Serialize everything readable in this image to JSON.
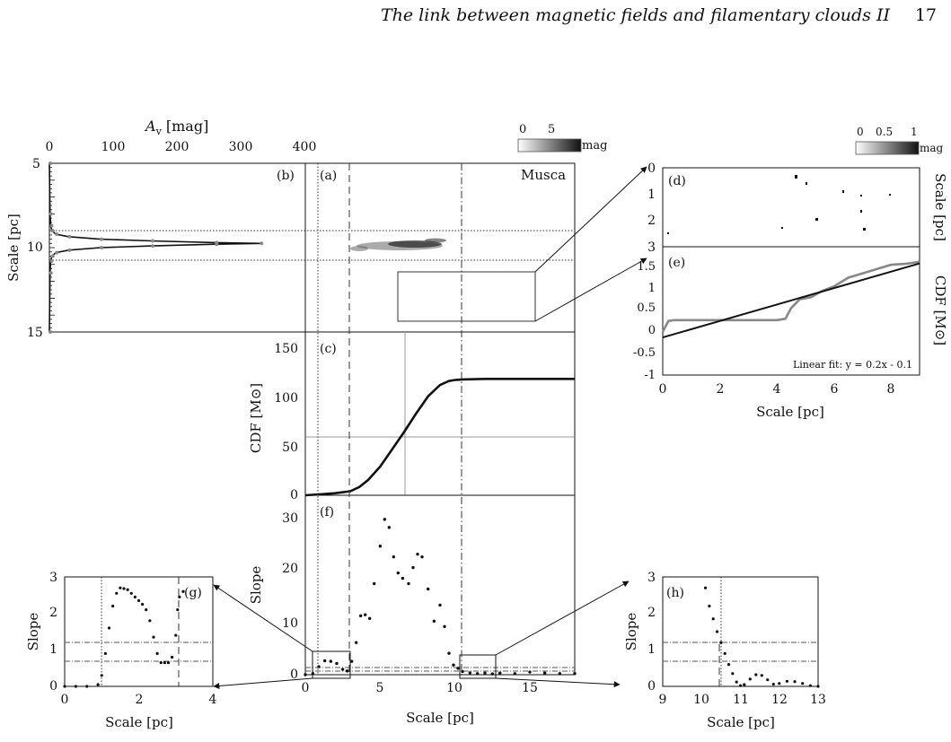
{
  "header": {
    "title": "The link between magnetic fields and filamentary clouds II",
    "page_number": "17"
  },
  "figure": {
    "colorbar_a": {
      "ticks": [
        "0",
        "5"
      ],
      "unit": "mag"
    },
    "colorbar_d": {
      "ticks": [
        "0",
        "0.5",
        "1"
      ],
      "unit": "mag"
    },
    "top_axis": {
      "label": "A_v [mag]",
      "ticks": [
        "0",
        "100",
        "200",
        "300",
        "400"
      ]
    },
    "panel_a": {
      "tag": "(a)",
      "name": "Musca"
    },
    "panel_b": {
      "tag": "(b)",
      "ylabel": "Scale [pc]",
      "yticks": [
        "5",
        "10",
        "15"
      ]
    },
    "panel_c": {
      "tag": "(c)",
      "ylabel": "CDF [M⊙]",
      "yticks": [
        "0",
        "50",
        "100",
        "150"
      ]
    },
    "panel_f": {
      "tag": "(f)",
      "ylabel": "Slope",
      "yticks": [
        "0",
        "10",
        "20",
        "30"
      ],
      "xlabel": "Scale [pc]",
      "xticks": [
        "0",
        "5",
        "10",
        "15"
      ]
    },
    "panel_d": {
      "tag": "(d)",
      "ylabel": "Scale [pc]",
      "yticks": [
        "0",
        "1",
        "2",
        "3"
      ]
    },
    "panel_e": {
      "tag": "(e)",
      "ylabel": "CDF [M⊙]",
      "yticks": [
        "-1",
        "-0.5",
        "0",
        "0.5",
        "1",
        "1.5"
      ],
      "xticks": [
        "0",
        "2",
        "4",
        "6",
        "8"
      ],
      "xlabel": "Scale [pc]",
      "fit_text": "Linear fit: y = 0.2x - 0.1"
    },
    "panel_g": {
      "tag": "(g)",
      "ylabel": "Slope",
      "yticks": [
        "0",
        "1",
        "2",
        "3"
      ],
      "xticks": [
        "0",
        "2",
        "4"
      ],
      "xlabel": "Scale [pc]"
    },
    "panel_h": {
      "tag": "(h)",
      "ylabel": "Slope",
      "yticks": [
        "0",
        "1",
        "2",
        "3"
      ],
      "xticks": [
        "9",
        "10",
        "11",
        "12",
        "13"
      ],
      "xlabel": "Scale [pc]"
    }
  },
  "chart_data": [
    {
      "type": "line",
      "panel": "b",
      "xlabel": "A_v [mag]",
      "ylabel": "Scale [pc]",
      "xlim": [
        0,
        400
      ],
      "ylim": [
        15,
        5
      ],
      "series": [
        {
          "x": [
            0,
            1,
            2,
            4,
            10,
            30,
            80,
            160,
            260,
            330,
            260,
            160,
            80,
            30,
            10,
            4,
            2,
            1,
            0
          ],
          "y": [
            5,
            8,
            8.7,
            9.0,
            9.2,
            9.35,
            9.5,
            9.6,
            9.7,
            9.75,
            9.8,
            9.9,
            10.0,
            10.15,
            10.3,
            10.5,
            10.8,
            11.5,
            15
          ]
        }
      ]
    },
    {
      "type": "line",
      "panel": "c",
      "xlabel": "Scale [pc]",
      "ylabel": "CDF [M⊙]",
      "xlim": [
        0,
        18
      ],
      "ylim": [
        0,
        160
      ],
      "series": [
        {
          "x": [
            0,
            1,
            2,
            3,
            3.6,
            4.2,
            5,
            5.8,
            6.6,
            7.4,
            8.2,
            9,
            9.6,
            10,
            10.5,
            12,
            14,
            16,
            18
          ],
          "y": [
            0,
            1,
            2,
            4,
            8,
            15,
            28,
            45,
            62,
            80,
            97,
            108,
            112,
            113,
            113.5,
            114,
            114,
            114,
            114
          ]
        }
      ]
    },
    {
      "type": "scatter",
      "panel": "f",
      "xlabel": "Scale [pc]",
      "ylabel": "Slope",
      "xlim": [
        0,
        18
      ],
      "ylim": [
        0,
        33
      ],
      "series": [
        {
          "x": [
            0,
            0.5,
            0.9,
            1.3,
            1.7,
            2.1,
            2.5,
            2.8,
            3.1,
            3.4,
            3.7,
            4.0,
            4.3,
            4.6,
            5.0,
            5.3,
            5.6,
            5.9,
            6.2,
            6.5,
            6.9,
            7.2,
            7.5,
            7.8,
            8.2,
            8.6,
            9.0,
            9.3,
            9.6,
            9.9,
            10.2,
            10.5,
            11,
            11.5,
            12,
            12.5,
            13,
            14,
            15,
            16,
            17,
            18
          ],
          "y": [
            0,
            0.2,
            1.5,
            2.6,
            2.5,
            2.1,
            1.0,
            0.7,
            2.5,
            6,
            11,
            11.2,
            10.5,
            17,
            24,
            29,
            27.5,
            22,
            19,
            18,
            17,
            20,
            22.5,
            22,
            16,
            10,
            13,
            9,
            4,
            1.8,
            1.2,
            0.6,
            0.35,
            0.2,
            0.3,
            0.15,
            0.3,
            0.2,
            0.5,
            0.3,
            0.2,
            0.2
          ]
        }
      ]
    },
    {
      "type": "line",
      "panel": "e",
      "title": "Linear fit: y = 0.2x - 0.1",
      "xlabel": "Scale [pc]",
      "ylabel": "CDF [M⊙]",
      "xlim": [
        0,
        9
      ],
      "ylim": [
        -1,
        1.8
      ],
      "series": [
        {
          "x": [
            0,
            0.2,
            0.4,
            1,
            2,
            3,
            4,
            4.3,
            4.5,
            4.8,
            5.2,
            5.6,
            6,
            6.5,
            7,
            7.5,
            8,
            8.5,
            9
          ],
          "y": [
            0,
            0.25,
            0.27,
            0.27,
            0.27,
            0.27,
            0.27,
            0.3,
            0.55,
            0.75,
            0.8,
            0.95,
            1.05,
            1.25,
            1.35,
            1.45,
            1.55,
            1.57,
            1.62
          ]
        },
        {
          "x": [
            0,
            9
          ],
          "y": [
            -0.13,
            1.58
          ]
        }
      ]
    },
    {
      "type": "scatter",
      "panel": "g",
      "xlabel": "Scale [pc]",
      "ylabel": "Slope",
      "xlim": [
        0,
        4
      ],
      "ylim": [
        0,
        3
      ],
      "series": [
        {
          "x": [
            0,
            0.3,
            0.6,
            0.9,
            1.0,
            1.1,
            1.2,
            1.3,
            1.4,
            1.5,
            1.6,
            1.7,
            1.8,
            1.9,
            2.0,
            2.1,
            2.2,
            2.3,
            2.4,
            2.5,
            2.6,
            2.7,
            2.8,
            2.9,
            3.0,
            3.05,
            3.1,
            3.2
          ],
          "y": [
            0,
            0,
            0,
            0.05,
            0.3,
            0.9,
            1.6,
            2.2,
            2.55,
            2.7,
            2.68,
            2.65,
            2.55,
            2.45,
            2.35,
            2.25,
            2.1,
            1.8,
            1.35,
            0.9,
            0.65,
            0.65,
            0.65,
            0.8,
            1.4,
            2.1,
            2.45,
            2.6
          ]
        }
      ]
    },
    {
      "type": "scatter",
      "panel": "h",
      "xlabel": "Scale [pc]",
      "ylabel": "Slope",
      "xlim": [
        9,
        13
      ],
      "ylim": [
        0,
        3
      ],
      "series": [
        {
          "x": [
            10.1,
            10.2,
            10.3,
            10.4,
            10.5,
            10.6,
            10.7,
            10.8,
            10.9,
            11.0,
            11.1,
            11.25,
            11.4,
            11.55,
            11.7,
            11.85,
            12.0,
            12.2,
            12.4,
            12.6,
            12.8,
            13.0
          ],
          "y": [
            2.7,
            2.2,
            1.85,
            1.5,
            1.2,
            0.9,
            0.6,
            0.35,
            0.12,
            0.02,
            0.05,
            0.2,
            0.32,
            0.3,
            0.18,
            0.06,
            0.08,
            0.14,
            0.13,
            0.08,
            0.02,
            0.0
          ]
        }
      ]
    }
  ]
}
